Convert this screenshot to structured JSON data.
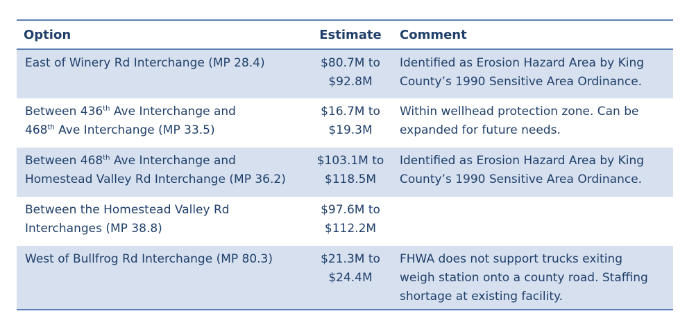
{
  "table": {
    "headers": {
      "option": "Option",
      "estimate": "Estimate",
      "comment": "Comment"
    },
    "rows": [
      {
        "option_lines": [
          [
            "East of Winery Rd Interchange (MP 28.4)"
          ]
        ],
        "estimate_lines": [
          "$80.7M to",
          "$92.8M"
        ],
        "comment_lines": [
          "Identified as Erosion Hazard Area by King",
          "County’s 1990 Sensitive Area Ordinance."
        ],
        "shaded": true
      },
      {
        "option_lines": [
          [
            "Between 436",
            "th",
            " Ave Interchange and"
          ],
          [
            "468",
            "th",
            " Ave Interchange (MP 33.5)"
          ]
        ],
        "estimate_lines": [
          "$16.7M to",
          "$19.3M"
        ],
        "comment_lines": [
          "Within wellhead protection zone. Can be",
          "expanded for future needs."
        ],
        "shaded": false
      },
      {
        "option_lines": [
          [
            "Between 468",
            "th",
            " Ave Interchange and"
          ],
          [
            "Homestead Valley Rd Interchange (MP 36.2)"
          ]
        ],
        "estimate_lines": [
          "$103.1M to",
          "$118.5M"
        ],
        "comment_lines": [
          "Identified as Erosion Hazard Area by King",
          "County’s 1990 Sensitive Area Ordinance."
        ],
        "shaded": true
      },
      {
        "option_lines": [
          [
            "Between the Homestead Valley Rd"
          ],
          [
            "Interchanges (MP 38.8)"
          ]
        ],
        "estimate_lines": [
          "$97.6M to",
          "$112.2M"
        ],
        "comment_lines": [],
        "shaded": false
      },
      {
        "option_lines": [
          [
            "West of Bullfrog Rd Interchange (MP 80.3)"
          ]
        ],
        "estimate_lines": [
          "$21.3M to",
          "$24.4M"
        ],
        "comment_lines": [
          "FHWA does not support trucks exiting",
          "weigh station onto a county road. Staffing",
          "shortage at existing facility."
        ],
        "shaded": true
      }
    ]
  }
}
